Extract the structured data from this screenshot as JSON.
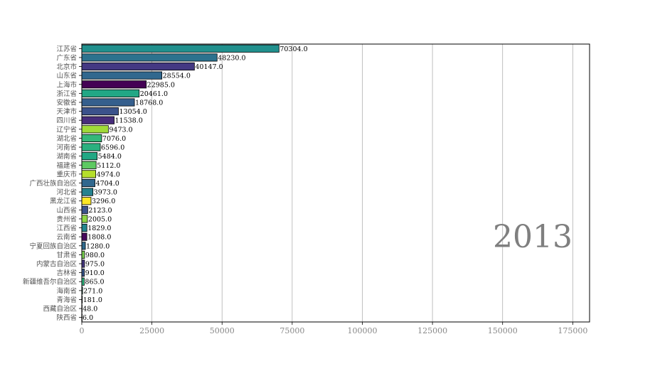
{
  "chart_data": {
    "type": "bar",
    "orientation": "horizontal",
    "year_label": "2013",
    "categories": [
      "江苏省",
      "广东省",
      "北京市",
      "山东省",
      "上海市",
      "浙江省",
      "安徽省",
      "天津市",
      "四川省",
      "辽宁省",
      "湖北省",
      "河南省",
      "湖南省",
      "福建省",
      "重庆市",
      "广西壮族自治区",
      "河北省",
      "黑龙江省",
      "山西省",
      "贵州省",
      "江西省",
      "云南省",
      "宁夏回族自治区",
      "甘肃省",
      "内蒙古自治区",
      "吉林省",
      "新疆维吾尔自治区",
      "海南省",
      "青海省",
      "西藏自治区",
      "陕西省"
    ],
    "values": [
      70304.0,
      48230.0,
      40147.0,
      28554.0,
      22985.0,
      20461.0,
      18768.0,
      13054.0,
      11538.0,
      9473.0,
      7076.0,
      6596.0,
      5484.0,
      5112.0,
      4974.0,
      4704.0,
      3973.0,
      3296.0,
      2123.0,
      2005.0,
      1829.0,
      1808.0,
      1280.0,
      980.0,
      975.0,
      910.0,
      865.0,
      271.0,
      181.0,
      48.0,
      6.0
    ],
    "value_labels": [
      "70304.0",
      "48230.0",
      "40147.0",
      "28554.0",
      "22985.0",
      "20461.0",
      "18768.0",
      "13054.0",
      "11538.0",
      "9473.0",
      "7076.0",
      "6596.0",
      "5484.0",
      "5112.0",
      "4974.0",
      "4704.0",
      "3973.0",
      "3296.0",
      "2123.0",
      "2005.0",
      "1829.0",
      "1808.0",
      "1280.0",
      "980.0",
      "975.0",
      "910.0",
      "865.0",
      "271.0",
      "181.0",
      "48.0",
      "6.0"
    ],
    "colors": [
      "#21908d",
      "#2c728e",
      "#443983",
      "#31688e",
      "#440154",
      "#22a785",
      "#355f8d",
      "#3b528b",
      "#472d7b",
      "#a0da39",
      "#35b779",
      "#2ab07f",
      "#22a884",
      "#5ec962",
      "#b5de2b",
      "#31688e",
      "#26828e",
      "#fde725",
      "#3b528b",
      "#8fd744",
      "#24878e",
      "#46085c",
      "#2f6b8e",
      "#7ad151",
      "#453781",
      "#39568c",
      "#2eb37c",
      "#25ac82",
      "#27808e",
      "#3e4a89",
      "#471063"
    ],
    "xlim": [
      0,
      181000
    ],
    "xticks": [
      0,
      25000,
      50000,
      75000,
      100000,
      125000,
      150000,
      175000
    ],
    "xtick_labels": [
      "0",
      "25000",
      "50000",
      "75000",
      "100000",
      "125000",
      "150000",
      "175000"
    ],
    "grid": "x"
  }
}
